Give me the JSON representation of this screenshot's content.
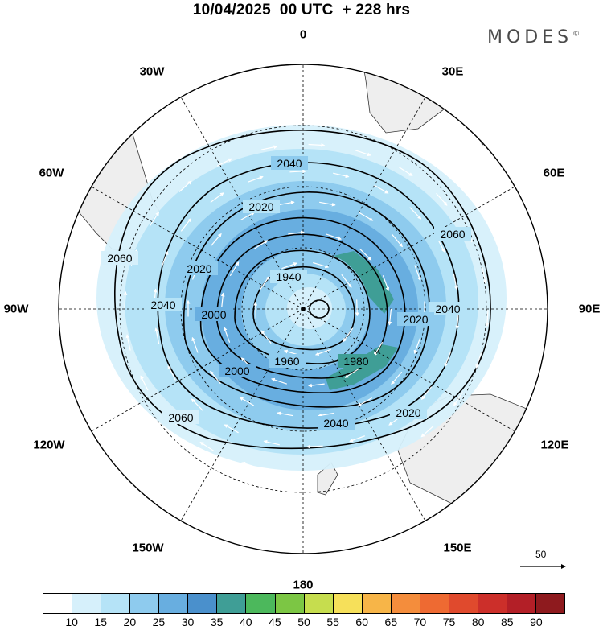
{
  "title": "10/04/2025  00 UTC  + 228 hrs",
  "brand": "MODES",
  "brand_mark": "©",
  "longitude_labels": {
    "n0": "0",
    "n30e": "30E",
    "n60e": "60E",
    "n90e": "90E",
    "n120e": "120E",
    "n150e": "150E",
    "n180": "180",
    "n150w": "150W",
    "n120w": "120W",
    "n90w": "90W",
    "n60w": "60W",
    "n30w": "30W"
  },
  "contours": {
    "c1940": "1940",
    "c1960": "1960",
    "c1980": "1980",
    "c2000": "2000",
    "c2020": "2020",
    "c2040": "2040",
    "c2060": "2060"
  },
  "reference_vector": "50",
  "colorbar": {
    "colors": [
      "#ffffff",
      "#d6f0fb",
      "#b5e3f7",
      "#8ecbee",
      "#68aee0",
      "#4a90cc",
      "#3f9e96",
      "#4cb85c",
      "#7cc644",
      "#c6dd4e",
      "#f6e05a",
      "#f7b548",
      "#f48d3c",
      "#ee6a32",
      "#e04a2d",
      "#cc2f2a",
      "#b31f27",
      "#8e1a1e"
    ],
    "ticks": [
      "10",
      "15",
      "20",
      "25",
      "30",
      "35",
      "40",
      "45",
      "50",
      "55",
      "60",
      "65",
      "70",
      "75",
      "80",
      "85",
      "90"
    ]
  }
}
